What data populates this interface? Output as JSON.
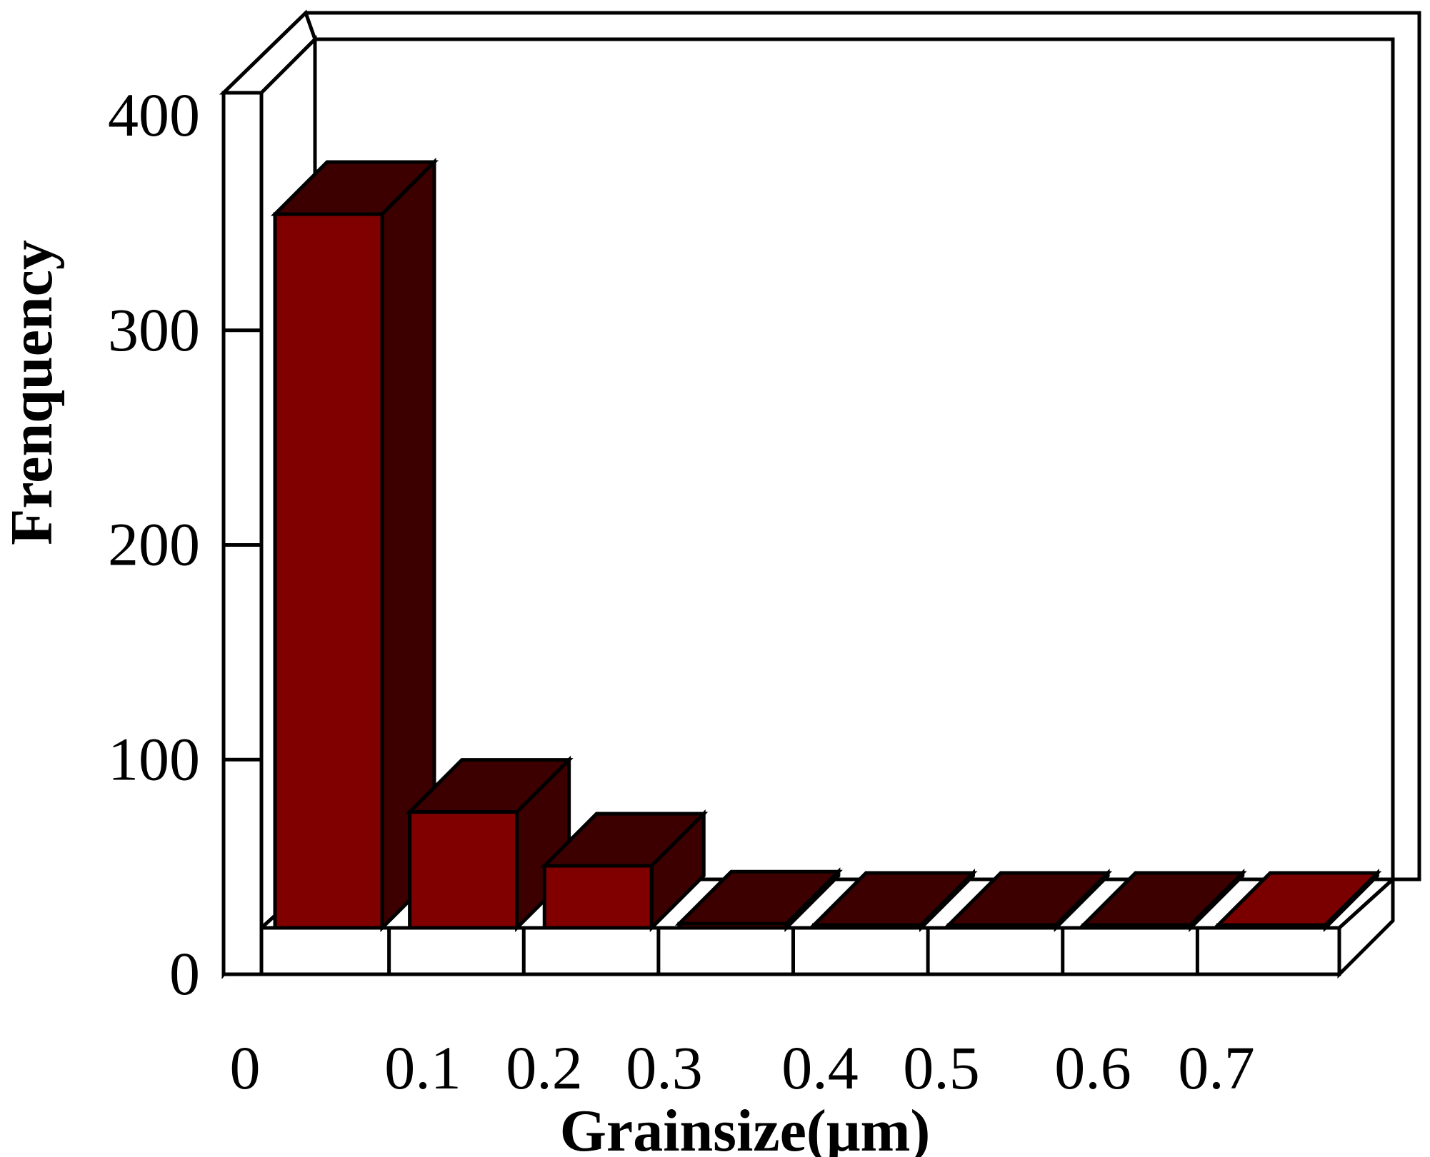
{
  "chart_data": {
    "type": "bar",
    "style": "3d",
    "xlabel": "Grainsize(μm)",
    "ylabel": "Frenquency",
    "ylim": [
      0,
      400
    ],
    "yticks": [
      "0",
      "100",
      "200",
      "300",
      "400"
    ],
    "xticks": [
      "0",
      "0.1",
      "0.2",
      "0.3",
      "0.4",
      "0.5",
      "0.6",
      "0.7"
    ],
    "categories": [
      "0-0.1",
      "0.1-0.2",
      "0.2-0.3",
      "0.3-0.4",
      "0.4-0.5",
      "0.5-0.6",
      "0.6-0.7",
      "0.7-0.8"
    ],
    "values": [
      345,
      56,
      30,
      2,
      1,
      0,
      0,
      1
    ],
    "grid": false,
    "legend": "none",
    "colors": {
      "bar_front": "#800000",
      "bar_side": "#3d0000",
      "bar_top": "#3d0000",
      "bar_top_last": "#7a0000",
      "frame": "#ffffff",
      "edge": "#000000"
    }
  }
}
